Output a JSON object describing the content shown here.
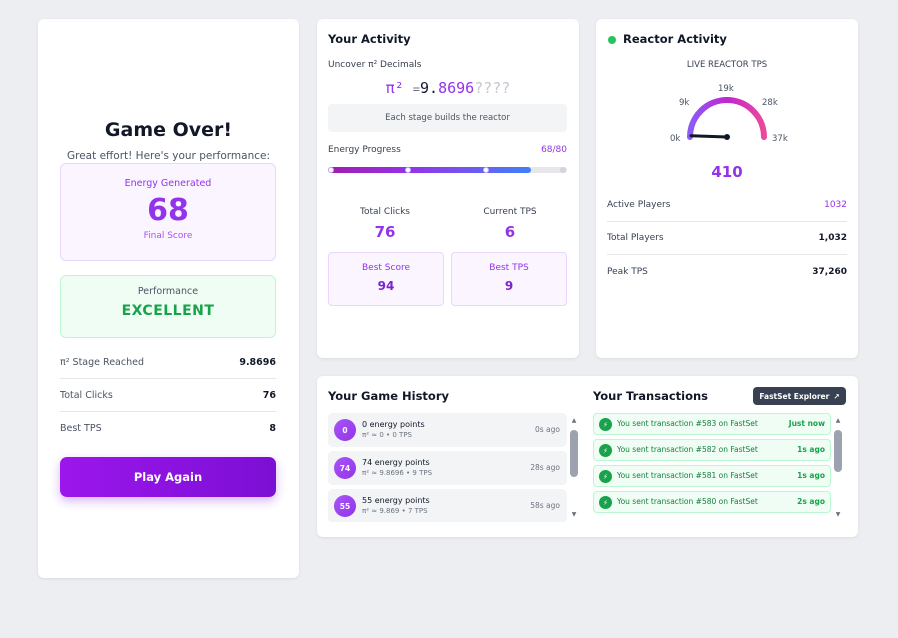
{
  "game_over": {
    "title": "Game Over!",
    "subtitle": "Great effort! Here's your performance:",
    "energy_label": "Energy Generated",
    "energy_value": "68",
    "final_score_label": "Final Score",
    "performance_label": "Performance",
    "performance_value": "EXCELLENT",
    "stats": [
      {
        "label": "π² Stage Reached",
        "value": "9.8696"
      },
      {
        "label": "Total Clicks",
        "value": "76"
      },
      {
        "label": "Best TPS",
        "value": "8"
      }
    ],
    "play_again_label": "Play Again"
  },
  "activity": {
    "title": "Your Activity",
    "uncover_label": "Uncover π² Decimals",
    "pi_prefix": "π²",
    "pi_eq": "=",
    "pi_known": "9.",
    "pi_found": "8696",
    "pi_hidden": "????",
    "stage_note": "Each stage builds the reactor",
    "energy_progress_label": "Energy Progress",
    "energy_progress_value": "68/80",
    "energy_progress_fraction": 0.85,
    "total_clicks_label": "Total Clicks",
    "total_clicks_value": "76",
    "current_tps_label": "Current TPS",
    "current_tps_value": "6",
    "best_score_label": "Best Score",
    "best_score_value": "94",
    "best_tps_label": "Best TPS",
    "best_tps_value": "9"
  },
  "reactor": {
    "title": "Reactor Activity",
    "live_label": "LIVE REACTOR TPS",
    "gauge_ticks": [
      "0k",
      "9k",
      "19k",
      "28k",
      "37k"
    ],
    "gauge_max": 37000,
    "tps_value": "410",
    "tps_numeric": 410,
    "rows": [
      {
        "label": "Active Players",
        "value": "1032"
      },
      {
        "label": "Total Players",
        "value": "1,032"
      },
      {
        "label": "Peak TPS",
        "value": "37,260"
      }
    ],
    "accent_color": "#9333ea"
  },
  "history": {
    "title": "Your Game History",
    "items": [
      {
        "badge": "0",
        "main": "0 energy points",
        "sub": "π² ≈ 0 • 0 TPS",
        "time": "0s ago"
      },
      {
        "badge": "74",
        "main": "74 energy points",
        "sub": "π² ≈ 9.8696 • 9 TPS",
        "time": "28s ago"
      },
      {
        "badge": "55",
        "main": "55 energy points",
        "sub": "π² ≈ 9.869 • 7 TPS",
        "time": "58s ago"
      }
    ]
  },
  "transactions": {
    "title": "Your Transactions",
    "explorer_label": "FastSet Explorer",
    "items": [
      {
        "text": "You sent transaction #583 on FastSet",
        "time": "Just now"
      },
      {
        "text": "You sent transaction #582 on FastSet",
        "time": "1s ago"
      },
      {
        "text": "You sent transaction #581 on FastSet",
        "time": "1s ago"
      },
      {
        "text": "You sent transaction #580 on FastSet",
        "time": "2s ago"
      }
    ]
  }
}
